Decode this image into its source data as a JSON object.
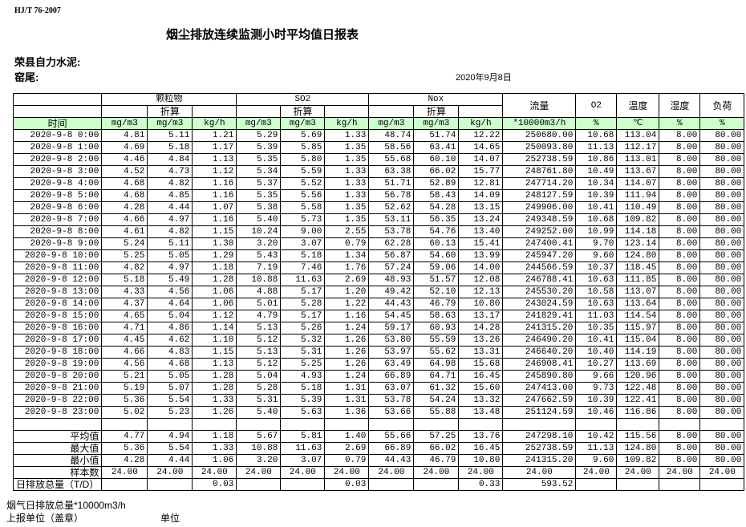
{
  "standard": "HJ/T  76-2007",
  "title": "烟尘排放连续监测小时平均值日报表",
  "company": "荣县自力水泥:",
  "unit": "窑尾:",
  "date": "2020年9月8日",
  "header": {
    "groups": [
      "颗粒物",
      "SO2",
      "Nox"
    ],
    "converted": "折算",
    "flow": "流量",
    "o2": "O2",
    "temp": "温度",
    "humidity": "湿度",
    "load": "负荷",
    "time": "时间",
    "units": [
      "mg/m3",
      "mg/m3",
      "kg/h",
      "mg/m3",
      "mg/m3",
      "kg/h",
      "mg/m3",
      "mg/m3",
      "kg/h",
      "*10000m3/h",
      "%",
      "℃",
      "%",
      "%"
    ]
  },
  "rows": [
    [
      "2020-9-8 0:00",
      "4.81",
      "5.11",
      "1.21",
      "5.29",
      "5.69",
      "1.33",
      "48.74",
      "51.74",
      "12.22",
      "250680.00",
      "10.68",
      "113.04",
      "8.00",
      "80.00"
    ],
    [
      "2020-9-8 1:00",
      "4.69",
      "5.18",
      "1.17",
      "5.39",
      "5.85",
      "1.35",
      "58.56",
      "63.41",
      "14.65",
      "250093.80",
      "11.13",
      "112.17",
      "8.00",
      "80.00"
    ],
    [
      "2020-9-8 2:00",
      "4.46",
      "4.84",
      "1.13",
      "5.35",
      "5.80",
      "1.35",
      "55.68",
      "60.10",
      "14.07",
      "252738.59",
      "10.86",
      "113.01",
      "8.00",
      "80.00"
    ],
    [
      "2020-9-8 3:00",
      "4.52",
      "4.73",
      "1.12",
      "5.34",
      "5.59",
      "1.33",
      "63.38",
      "66.02",
      "15.77",
      "248761.80",
      "10.49",
      "113.67",
      "8.00",
      "80.00"
    ],
    [
      "2020-9-8 4:00",
      "4.68",
      "4.82",
      "1.16",
      "5.37",
      "5.52",
      "1.33",
      "51.71",
      "52.89",
      "12.81",
      "247714.20",
      "10.34",
      "114.07",
      "8.00",
      "80.00"
    ],
    [
      "2020-9-8 5:00",
      "4.68",
      "4.85",
      "1.16",
      "5.35",
      "5.56",
      "1.33",
      "56.78",
      "58.43",
      "14.09",
      "248127.59",
      "10.39",
      "111.94",
      "8.00",
      "80.00"
    ],
    [
      "2020-9-8 6:00",
      "4.28",
      "4.44",
      "1.07",
      "5.38",
      "5.58",
      "1.35",
      "52.62",
      "54.28",
      "13.15",
      "249906.00",
      "10.41",
      "110.49",
      "8.00",
      "80.00"
    ],
    [
      "2020-9-8 7:00",
      "4.66",
      "4.97",
      "1.16",
      "5.40",
      "5.73",
      "1.35",
      "53.11",
      "56.35",
      "13.24",
      "249348.59",
      "10.68",
      "109.82",
      "8.00",
      "80.00"
    ],
    [
      "2020-9-8 8:00",
      "4.61",
      "4.82",
      "1.15",
      "10.24",
      "9.00",
      "2.55",
      "53.78",
      "54.76",
      "13.40",
      "249252.00",
      "10.99",
      "114.18",
      "8.00",
      "80.00"
    ],
    [
      "2020-9-8 9:00",
      "5.24",
      "5.11",
      "1.30",
      "3.20",
      "3.07",
      "0.79",
      "62.28",
      "60.13",
      "15.41",
      "247400.41",
      "9.70",
      "123.14",
      "8.00",
      "80.00"
    ],
    [
      "2020-9-8 10:00",
      "5.25",
      "5.05",
      "1.29",
      "5.43",
      "5.18",
      "1.34",
      "56.87",
      "54.60",
      "13.99",
      "245947.20",
      "9.60",
      "124.80",
      "8.00",
      "80.00"
    ],
    [
      "2020-9-8 11:00",
      "4.82",
      "4.97",
      "1.18",
      "7.19",
      "7.46",
      "1.76",
      "57.24",
      "59.06",
      "14.00",
      "244566.59",
      "10.37",
      "118.45",
      "8.00",
      "80.00"
    ],
    [
      "2020-9-8 12:00",
      "5.18",
      "5.49",
      "1.28",
      "10.88",
      "11.63",
      "2.69",
      "48.93",
      "51.57",
      "12.08",
      "246788.41",
      "10.63",
      "111.85",
      "8.00",
      "80.00"
    ],
    [
      "2020-9-8 13:00",
      "4.33",
      "4.56",
      "1.06",
      "4.88",
      "5.17",
      "1.20",
      "49.42",
      "52.10",
      "12.13",
      "245530.20",
      "10.58",
      "113.07",
      "8.00",
      "80.00"
    ],
    [
      "2020-9-8 14:00",
      "4.37",
      "4.64",
      "1.06",
      "5.01",
      "5.28",
      "1.22",
      "44.43",
      "46.79",
      "10.80",
      "243024.59",
      "10.63",
      "113.64",
      "8.00",
      "80.00"
    ],
    [
      "2020-9-8 15:00",
      "4.65",
      "5.04",
      "1.12",
      "4.79",
      "5.17",
      "1.16",
      "54.45",
      "58.63",
      "13.17",
      "241829.41",
      "11.03",
      "114.54",
      "8.00",
      "80.00"
    ],
    [
      "2020-9-8 16:00",
      "4.71",
      "4.86",
      "1.14",
      "5.13",
      "5.26",
      "1.24",
      "59.17",
      "60.93",
      "14.28",
      "241315.20",
      "10.35",
      "115.97",
      "8.00",
      "80.00"
    ],
    [
      "2020-9-8 17:00",
      "4.45",
      "4.62",
      "1.10",
      "5.12",
      "5.32",
      "1.26",
      "53.80",
      "55.59",
      "13.26",
      "246490.20",
      "10.41",
      "115.04",
      "8.00",
      "80.00"
    ],
    [
      "2020-9-8 18:00",
      "4.66",
      "4.83",
      "1.15",
      "5.13",
      "5.31",
      "1.26",
      "53.97",
      "55.62",
      "13.31",
      "246640.20",
      "10.40",
      "114.19",
      "8.00",
      "80.00"
    ],
    [
      "2020-9-8 19:00",
      "4.56",
      "4.68",
      "1.13",
      "5.12",
      "5.25",
      "1.26",
      "63.49",
      "64.98",
      "15.68",
      "246908.41",
      "10.27",
      "113.69",
      "8.00",
      "80.00"
    ],
    [
      "2020-9-8 20:00",
      "5.21",
      "5.05",
      "1.28",
      "5.04",
      "4.93",
      "1.24",
      "66.89",
      "64.71",
      "16.45",
      "245890.80",
      "9.66",
      "120.96",
      "8.00",
      "80.00"
    ],
    [
      "2020-9-8 21:00",
      "5.19",
      "5.07",
      "1.28",
      "5.28",
      "5.18",
      "1.31",
      "63.07",
      "61.32",
      "15.60",
      "247413.00",
      "9.73",
      "122.48",
      "8.00",
      "80.00"
    ],
    [
      "2020-9-8 22:00",
      "5.36",
      "5.54",
      "1.33",
      "5.31",
      "5.39",
      "1.31",
      "53.78",
      "54.24",
      "13.32",
      "247662.59",
      "10.39",
      "122.41",
      "8.00",
      "80.00"
    ],
    [
      "2020-9-8 23:00",
      "5.02",
      "5.23",
      "1.26",
      "5.40",
      "5.63",
      "1.36",
      "53.66",
      "55.88",
      "13.48",
      "251124.59",
      "10.46",
      "116.86",
      "8.00",
      "80.00"
    ]
  ],
  "stats": [
    [
      "平均值",
      "4.77",
      "4.94",
      "1.18",
      "5.67",
      "5.81",
      "1.40",
      "55.66",
      "57.25",
      "13.76",
      "247298.10",
      "10.42",
      "115.56",
      "8.00",
      "80.00"
    ],
    [
      "最大值",
      "5.36",
      "5.54",
      "1.33",
      "10.88",
      "11.63",
      "2.69",
      "66.89",
      "66.02",
      "16.45",
      "252738.59",
      "11.13",
      "124.80",
      "8.00",
      "80.00"
    ],
    [
      "最小值",
      "4.28",
      "4.44",
      "1.06",
      "3.20",
      "3.07",
      "0.79",
      "44.43",
      "46.79",
      "10.80",
      "241315.20",
      "9.60",
      "109.82",
      "8.00",
      "80.00"
    ],
    [
      "样本数",
      "24.00",
      "24.00",
      "24.00",
      "24.00",
      "24.00",
      "24.00",
      "24.00",
      "24.00",
      "24.00",
      "24.00",
      "24.00",
      "24.00",
      "24.00",
      "24.00"
    ],
    [
      "日排放总量（T/D）",
      "",
      "",
      "0.03",
      "",
      "",
      "0.03",
      "",
      "",
      "0.33",
      "593.52",
      "",
      "",
      "",
      ""
    ]
  ],
  "footer": {
    "flue_total": "烟气日排放总量*10000m3/h",
    "reporting_unit": "上报单位（盖章）",
    "unit_label": "单位"
  }
}
